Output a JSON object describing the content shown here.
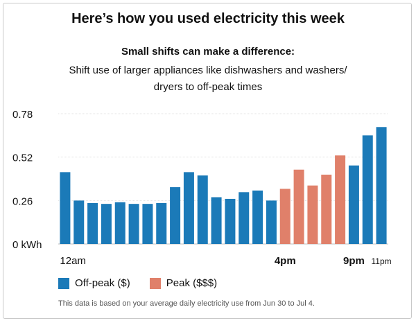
{
  "title": "Here’s how you used electricity this week",
  "subtitle_strong": "Small shifts can make a difference:",
  "subtitle": "Shift use of larger appliances like dishwashers and washers/ dryers to off-peak times",
  "legend": {
    "offpeak": "Off-peak ($)",
    "peak": "Peak ($$$)"
  },
  "note": "This data is based on your average daily electricity use from Jun 30 to Jul 4.",
  "colors": {
    "offpeak": "#1b7ab8",
    "peak": "#e0806a"
  },
  "chart_data": {
    "type": "bar",
    "x": [
      0,
      1,
      2,
      3,
      4,
      5,
      6,
      7,
      8,
      9,
      10,
      11,
      12,
      13,
      14,
      15,
      16,
      17,
      18,
      19,
      20,
      21,
      22,
      23
    ],
    "values": [
      0.43,
      0.26,
      0.245,
      0.24,
      0.25,
      0.24,
      0.24,
      0.245,
      0.34,
      0.43,
      0.41,
      0.28,
      0.27,
      0.31,
      0.32,
      0.26,
      0.33,
      0.445,
      0.35,
      0.415,
      0.53,
      0.47,
      0.65,
      0.7
    ],
    "period": [
      "offpeak",
      "offpeak",
      "offpeak",
      "offpeak",
      "offpeak",
      "offpeak",
      "offpeak",
      "offpeak",
      "offpeak",
      "offpeak",
      "offpeak",
      "offpeak",
      "offpeak",
      "offpeak",
      "offpeak",
      "offpeak",
      "peak",
      "peak",
      "peak",
      "peak",
      "peak",
      "offpeak",
      "offpeak",
      "offpeak"
    ],
    "ylim": [
      0,
      0.78
    ],
    "yticks": [
      0,
      0.26,
      0.52,
      0.78
    ],
    "ytick_labels": [
      "0 kWh",
      "0.26",
      "0.52",
      "0.78"
    ],
    "xtick_labels": [
      {
        "index": 0,
        "label": "12am",
        "bold": false
      },
      {
        "index": 16,
        "label": "4pm",
        "bold": true
      },
      {
        "index": 21,
        "label": "9pm",
        "bold": true
      },
      {
        "index": 23,
        "label": "11pm",
        "bold": false
      }
    ],
    "grid": true
  }
}
